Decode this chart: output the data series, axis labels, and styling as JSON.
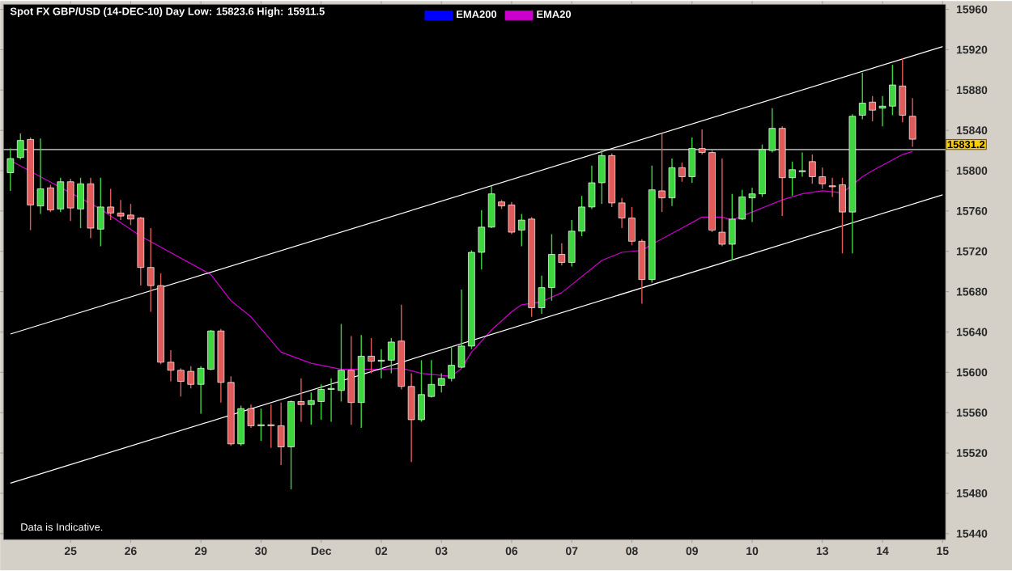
{
  "chart_data": {
    "type": "candlestick",
    "title": "Spot FX GBP/USD (14-DEC-10)   Day   Low: 15823.6   High: 15911.5",
    "categories": [
      null,
      null,
      null,
      null,
      null,
      null,
      "25",
      null,
      null,
      null,
      null,
      null,
      "26",
      null,
      null,
      null,
      null,
      null,
      null,
      "29",
      null,
      null,
      null,
      null,
      null,
      "30",
      null,
      null,
      null,
      null,
      null,
      "Dec",
      null,
      null,
      null,
      null,
      null,
      "02",
      null,
      null,
      null,
      null,
      null,
      "03",
      null,
      null,
      null,
      null,
      null,
      null,
      "06",
      null,
      null,
      null,
      null,
      null,
      "07",
      null,
      null,
      null,
      null,
      null,
      "08",
      null,
      null,
      null,
      null,
      null,
      "09",
      null,
      null,
      null,
      null,
      null,
      "10",
      null,
      null,
      null,
      null,
      null,
      null,
      "13",
      null,
      null,
      null,
      null,
      null,
      "14",
      null,
      null,
      null,
      null,
      null,
      "15"
    ],
    "ohlc": [
      [
        15798,
        15822,
        15780,
        15812
      ],
      [
        15813,
        15837,
        15811,
        15830
      ],
      [
        15831,
        15833,
        15741,
        15766
      ],
      [
        15765,
        15832,
        15757,
        15782
      ],
      [
        15783,
        15786,
        15759,
        15761
      ],
      [
        15762,
        15793,
        15759,
        15789
      ],
      [
        15789,
        15792,
        15750,
        15763
      ],
      [
        15762,
        15793,
        15743,
        15787
      ],
      [
        15787,
        15793,
        15733,
        15743
      ],
      [
        15742,
        15793,
        15725,
        15764
      ],
      [
        15764,
        15782,
        15751,
        15758
      ],
      [
        15758,
        15771,
        15751,
        15755
      ],
      [
        15756,
        15767,
        15746,
        15752
      ],
      [
        15753,
        15754,
        15686,
        15704
      ],
      [
        15704,
        15743,
        15660,
        15686
      ],
      [
        15686,
        15698,
        15608,
        15610
      ],
      [
        15610,
        15622,
        15591,
        15602
      ],
      [
        15602,
        15604,
        15576,
        15591
      ],
      [
        15601,
        15606,
        15584,
        15588
      ],
      [
        15588,
        15606,
        15559,
        15604
      ],
      [
        15603,
        15642,
        15602,
        15641
      ],
      [
        15641,
        15643,
        15570,
        15590
      ],
      [
        15590,
        15596,
        15527,
        15529
      ],
      [
        15529,
        15567,
        15527,
        15564
      ],
      [
        15564,
        15568,
        15545,
        15547
      ],
      [
        15547,
        15564,
        15532,
        15548
      ],
      [
        15548,
        15568,
        15525,
        15547
      ],
      [
        15547,
        15570,
        15508,
        15526
      ],
      [
        15526,
        15572,
        15484,
        15571
      ],
      [
        15571,
        15594,
        15551,
        15568
      ],
      [
        15568,
        15580,
        15548,
        15572
      ],
      [
        15571,
        15588,
        15553,
        15583
      ],
      [
        15583,
        15594,
        15551,
        15584
      ],
      [
        15582,
        15648,
        15571,
        15602
      ],
      [
        15602,
        15636,
        15548,
        15570
      ],
      [
        15570,
        15637,
        15545,
        15616
      ],
      [
        15616,
        15634,
        15599,
        15611
      ],
      [
        15611,
        15623,
        15594,
        15612
      ],
      [
        15612,
        15634,
        15599,
        15630
      ],
      [
        15631,
        15667,
        15583,
        15586
      ],
      [
        15586,
        15599,
        15511,
        15553
      ],
      [
        15553,
        15612,
        15551,
        15578
      ],
      [
        15576,
        15612,
        15575,
        15588
      ],
      [
        15587,
        15599,
        15580,
        15594
      ],
      [
        15594,
        15626,
        15591,
        15607
      ],
      [
        15605,
        15682,
        15604,
        15626
      ],
      [
        15626,
        15721,
        15623,
        15719
      ],
      [
        15719,
        15761,
        15702,
        15744
      ],
      [
        15744,
        15785,
        15743,
        15777
      ],
      [
        15769,
        15771,
        15762,
        15765
      ],
      [
        15766,
        15769,
        15737,
        15739
      ],
      [
        15741,
        15757,
        15725,
        15751
      ],
      [
        15752,
        15754,
        15655,
        15664
      ],
      [
        15664,
        15696,
        15658,
        15684
      ],
      [
        15684,
        15737,
        15671,
        15717
      ],
      [
        15717,
        15728,
        15706,
        15709
      ],
      [
        15709,
        15751,
        15705,
        15740
      ],
      [
        15740,
        15775,
        15735,
        15764
      ],
      [
        15764,
        15805,
        15762,
        15788
      ],
      [
        15788,
        15821,
        15767,
        15815
      ],
      [
        15815,
        15817,
        15764,
        15768
      ],
      [
        15768,
        15773,
        15743,
        15753
      ],
      [
        15753,
        15764,
        15726,
        15730
      ],
      [
        15730,
        15732,
        15668,
        15692
      ],
      [
        15692,
        15805,
        15689,
        15781
      ],
      [
        15780,
        15837,
        15759,
        15773
      ],
      [
        15773,
        15812,
        15765,
        15803
      ],
      [
        15803,
        15808,
        15789,
        15794
      ],
      [
        15794,
        15833,
        15788,
        15822
      ],
      [
        15822,
        15841,
        15816,
        15818
      ],
      [
        15818,
        15821,
        15739,
        15741
      ],
      [
        15739,
        15812,
        15725,
        15727
      ],
      [
        15727,
        15777,
        15711,
        15752
      ],
      [
        15752,
        15781,
        15751,
        15774
      ],
      [
        15773,
        15783,
        15749,
        15777
      ],
      [
        15777,
        15826,
        15774,
        15821
      ],
      [
        15820,
        15862,
        15818,
        15842
      ],
      [
        15842,
        15844,
        15755,
        15793
      ],
      [
        15793,
        15809,
        15775,
        15801
      ],
      [
        15799,
        15818,
        15794,
        15800
      ],
      [
        15809,
        15816,
        15787,
        15794
      ],
      [
        15794,
        15803,
        15782,
        15787
      ],
      [
        15785,
        15793,
        15774,
        15784
      ],
      [
        15786,
        15793,
        15718,
        15759
      ],
      [
        15759,
        15856,
        15718,
        15854
      ],
      [
        15855,
        15897,
        15851,
        15867
      ],
      [
        15868,
        15874,
        15849,
        15860
      ],
      [
        15862,
        15874,
        15844,
        15864
      ],
      [
        15864,
        15905,
        15855,
        15885
      ],
      [
        15884,
        15911.5,
        15848,
        15855
      ],
      [
        15854,
        15872,
        15823.6,
        15831.2
      ],
      null,
      null,
      null
    ],
    "colors": [
      "#3ed63e",
      "#3ed63e",
      "#e05a5a",
      "#3ed63e",
      "#e05a5a",
      "#3ed63e",
      "#e05a5a",
      "#3ed63e",
      "#e05a5a",
      "#3ed63e",
      "#e05a5a",
      "#e05a5a",
      "#e05a5a",
      "#e05a5a",
      "#e05a5a",
      "#e05a5a",
      "#e05a5a",
      "#e05a5a",
      "#e05a5a",
      "#3ed63e",
      "#3ed63e",
      "#e05a5a",
      "#e05a5a",
      "#3ed63e",
      "#e05a5a",
      "#3ed63e",
      "#e05a5a",
      "#e05a5a",
      "#3ed63e",
      "#e05a5a",
      "#3ed63e",
      "#3ed63e",
      "#3ed63e",
      "#3ed63e",
      "#e05a5a",
      "#3ed63e",
      "#e05a5a",
      "#3ed63e",
      "#3ed63e",
      "#e05a5a",
      "#e05a5a",
      "#3ed63e",
      "#3ed63e",
      "#3ed63e",
      "#3ed63e",
      "#3ed63e",
      "#3ed63e",
      "#3ed63e",
      "#3ed63e",
      "#e05a5a",
      "#e05a5a",
      "#3ed63e",
      "#e05a5a",
      "#3ed63e",
      "#3ed63e",
      "#e05a5a",
      "#3ed63e",
      "#3ed63e",
      "#3ed63e",
      "#3ed63e",
      "#e05a5a",
      "#e05a5a",
      "#e05a5a",
      "#e05a5a",
      "#3ed63e",
      "#e05a5a",
      "#3ed63e",
      "#e05a5a",
      "#3ed63e",
      "#e05a5a",
      "#e05a5a",
      "#e05a5a",
      "#3ed63e",
      "#3ed63e",
      "#3ed63e",
      "#3ed63e",
      "#3ed63e",
      "#e05a5a",
      "#3ed63e",
      "#3ed63e",
      "#e05a5a",
      "#e05a5a",
      "#e05a5a",
      "#e05a5a",
      "#3ed63e",
      "#3ed63e",
      "#e05a5a",
      "#3ed63e",
      "#3ed63e",
      "#e05a5a",
      "#e05a5a",
      "#e05a5a",
      "#e05a5a",
      "#e05a5a"
    ],
    "series": [
      {
        "name": "EMA200",
        "color": "#0000ff",
        "type": "line",
        "values": [
          null,
          null,
          null,
          null,
          null,
          null,
          null,
          null,
          null,
          null,
          null,
          null,
          null,
          null,
          null,
          null,
          null,
          null,
          null,
          null,
          null,
          null,
          null,
          null,
          null,
          null,
          null,
          null,
          null,
          null,
          null,
          null,
          null,
          null,
          null,
          null,
          null,
          null,
          null,
          null,
          null,
          null,
          null,
          null,
          null,
          null,
          null,
          null,
          null,
          null,
          null,
          null,
          null,
          null,
          null,
          null,
          null,
          null,
          null,
          null,
          null,
          null,
          null,
          null,
          null,
          null,
          null,
          null,
          null,
          null,
          null,
          null,
          null,
          null,
          null,
          null,
          null,
          null,
          null,
          null,
          null,
          null,
          null,
          null,
          null,
          null,
          null,
          null,
          null,
          null,
          null,
          null,
          null,
          null
        ]
      },
      {
        "name": "EMA20",
        "color": "#cc00cc",
        "type": "line",
        "values": [
          15810,
          null,
          null,
          null,
          null,
          null,
          null,
          null,
          null,
          15762,
          null,
          null,
          null,
          15735,
          null,
          null,
          null,
          null,
          null,
          null,
          15697,
          null,
          15671,
          null,
          15655,
          null,
          null,
          15620,
          null,
          null,
          15609,
          null,
          null,
          15603,
          null,
          null,
          null,
          15603,
          null,
          15604,
          null,
          15599,
          null,
          null,
          15596,
          15604,
          15620,
          null,
          15642,
          null,
          15660,
          15667,
          null,
          15670,
          null,
          15679,
          null,
          15695,
          null,
          15711,
          null,
          15719,
          null,
          15721,
          15727,
          null,
          null,
          15743,
          null,
          15754,
          null,
          15754,
          15751,
          null,
          15759,
          null,
          null,
          15771,
          null,
          15777,
          null,
          15780,
          null,
          15778,
          null,
          15794,
          15800,
          null,
          null,
          15816,
          15819,
          null,
          null,
          null
        ]
      },
      {
        "color": "#ffffff",
        "type": "line",
        "values": [
          15638,
          null,
          null,
          null,
          null,
          null,
          null,
          null,
          null,
          null,
          null,
          null,
          null,
          null,
          null,
          null,
          null,
          null,
          null,
          null,
          null,
          null,
          null,
          null,
          null,
          null,
          null,
          null,
          null,
          null,
          null,
          null,
          null,
          null,
          null,
          null,
          null,
          null,
          null,
          null,
          null,
          null,
          null,
          null,
          null,
          null,
          null,
          null,
          null,
          null,
          null,
          null,
          null,
          null,
          null,
          null,
          null,
          null,
          null,
          null,
          null,
          null,
          null,
          null,
          null,
          null,
          null,
          null,
          null,
          null,
          null,
          null,
          null,
          null,
          null,
          null,
          null,
          null,
          null,
          null,
          null,
          null,
          null,
          null,
          null,
          null,
          null,
          null,
          null,
          null,
          null,
          null,
          null,
          15923
        ]
      },
      {
        "color": "#ffffff",
        "type": "line",
        "values": [
          15490,
          null,
          null,
          null,
          null,
          null,
          null,
          null,
          null,
          null,
          null,
          null,
          null,
          null,
          null,
          null,
          null,
          null,
          null,
          null,
          null,
          null,
          null,
          null,
          null,
          null,
          null,
          null,
          null,
          null,
          null,
          null,
          null,
          null,
          null,
          null,
          null,
          null,
          null,
          null,
          null,
          null,
          null,
          null,
          null,
          null,
          null,
          null,
          null,
          null,
          null,
          null,
          null,
          null,
          null,
          null,
          null,
          null,
          null,
          null,
          null,
          null,
          null,
          null,
          null,
          null,
          null,
          null,
          null,
          null,
          null,
          null,
          null,
          null,
          null,
          null,
          null,
          null,
          null,
          null,
          null,
          null,
          null,
          null,
          null,
          null,
          null,
          null,
          null,
          null,
          null,
          null,
          null,
          15776
        ]
      }
    ],
    "ref_lines": [
      {
        "axis": "y",
        "value": 15821,
        "color": "#a0a0a0"
      }
    ],
    "annotations": [
      "Data is Indicative.",
      "15831.2"
    ],
    "ylim": [
      15434,
      15965
    ],
    "yticks": [
      15440,
      15480,
      15520,
      15560,
      15600,
      15640,
      15680,
      15720,
      15760,
      15800,
      15840,
      15880,
      15920,
      15960
    ],
    "legend": "top left"
  }
}
